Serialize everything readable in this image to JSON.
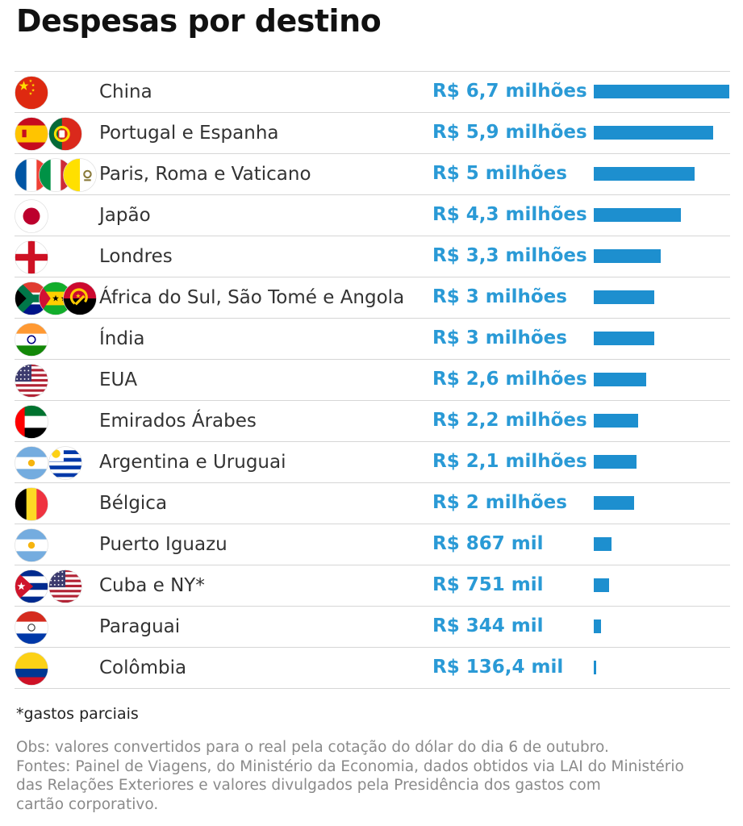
{
  "title": "Despesas por destino",
  "rows": [
    {
      "name": "China",
      "value_label": "R$ 6,7 milhões",
      "flags": [
        "cn"
      ]
    },
    {
      "name": "Portugal e Espanha",
      "value_label": "R$ 5,9 milhões",
      "flags": [
        "es",
        "pt"
      ]
    },
    {
      "name": "Paris, Roma e Vaticano",
      "value_label": "R$ 5 milhões",
      "flags": [
        "fr",
        "it",
        "va"
      ]
    },
    {
      "name": "Japão",
      "value_label": "R$ 4,3 milhões",
      "flags": [
        "jp"
      ]
    },
    {
      "name": "Londres",
      "value_label": "R$ 3,3 milhões",
      "flags": [
        "en"
      ]
    },
    {
      "name": "África do Sul, São Tomé e Angola",
      "value_label": "R$ 3 milhões",
      "flags": [
        "za",
        "st",
        "ao"
      ]
    },
    {
      "name": "Índia",
      "value_label": "R$ 3 milhões",
      "flags": [
        "in"
      ]
    },
    {
      "name": "EUA",
      "value_label": "R$ 2,6 milhões",
      "flags": [
        "us"
      ]
    },
    {
      "name": "Emirados Árabes",
      "value_label": "R$ 2,2 milhões",
      "flags": [
        "ae"
      ]
    },
    {
      "name": "Argentina e Uruguai",
      "value_label": "R$ 2,1 milhões",
      "flags": [
        "ar",
        "uy"
      ]
    },
    {
      "name": "Bélgica",
      "value_label": "R$ 2 milhões",
      "flags": [
        "be"
      ]
    },
    {
      "name": "Puerto Iguazu",
      "value_label": "R$ 867 mil",
      "flags": [
        "ar"
      ]
    },
    {
      "name": "Cuba e NY*",
      "value_label": "R$ 751 mil",
      "flags": [
        "cu",
        "us"
      ]
    },
    {
      "name": "Paraguai",
      "value_label": "R$ 344 mil",
      "flags": [
        "py"
      ]
    },
    {
      "name": "Colômbia",
      "value_label": "R$ 136,4 mil",
      "flags": [
        "co"
      ]
    }
  ],
  "note": "*gastos parciais",
  "obs_lines": [
    "Obs: valores convertidos para o real pela cotação do dólar do dia 6 de outubro.",
    "Fontes: Painel de Viagens, do Ministério da Economia, dados obtidos via LAI do Ministério",
    "das Relações Exteriores e valores divulgados pela Presidência dos gastos com",
    "cartão corporativo."
  ],
  "colors": {
    "value_text": "#2a9ad6",
    "bar": "#1d8fcf",
    "divider": "#d6d6d6",
    "obs_text": "#8a8a8a"
  },
  "chart_data": {
    "type": "bar",
    "orientation": "horizontal",
    "title": "Despesas por destino",
    "unit": "R$",
    "categories": [
      "China",
      "Portugal e Espanha",
      "Paris, Roma e Vaticano",
      "Japão",
      "Londres",
      "África do Sul, São Tomé e Angola",
      "Índia",
      "EUA",
      "Emirados Árabes",
      "Argentina e Uruguai",
      "Bélgica",
      "Puerto Iguazu",
      "Cuba e NY*",
      "Paraguai",
      "Colômbia"
    ],
    "values": [
      6700000,
      5900000,
      5000000,
      4300000,
      3300000,
      3000000,
      3000000,
      2600000,
      2200000,
      2100000,
      2000000,
      867000,
      751000,
      344000,
      136400
    ],
    "value_labels": [
      "R$ 6,7 milhões",
      "R$ 5,9 milhões",
      "R$ 5 milhões",
      "R$ 4,3 milhões",
      "R$ 3,3 milhões",
      "R$ 3 milhões",
      "R$ 3 milhões",
      "R$ 2,6 milhões",
      "R$ 2,2 milhões",
      "R$ 2,1 milhões",
      "R$ 2 milhões",
      "R$ 867 mil",
      "R$ 751 mil",
      "R$ 344 mil",
      "R$ 136,4 mil"
    ],
    "xlim": [
      0,
      6700000
    ],
    "grid": false,
    "legend": "none"
  }
}
